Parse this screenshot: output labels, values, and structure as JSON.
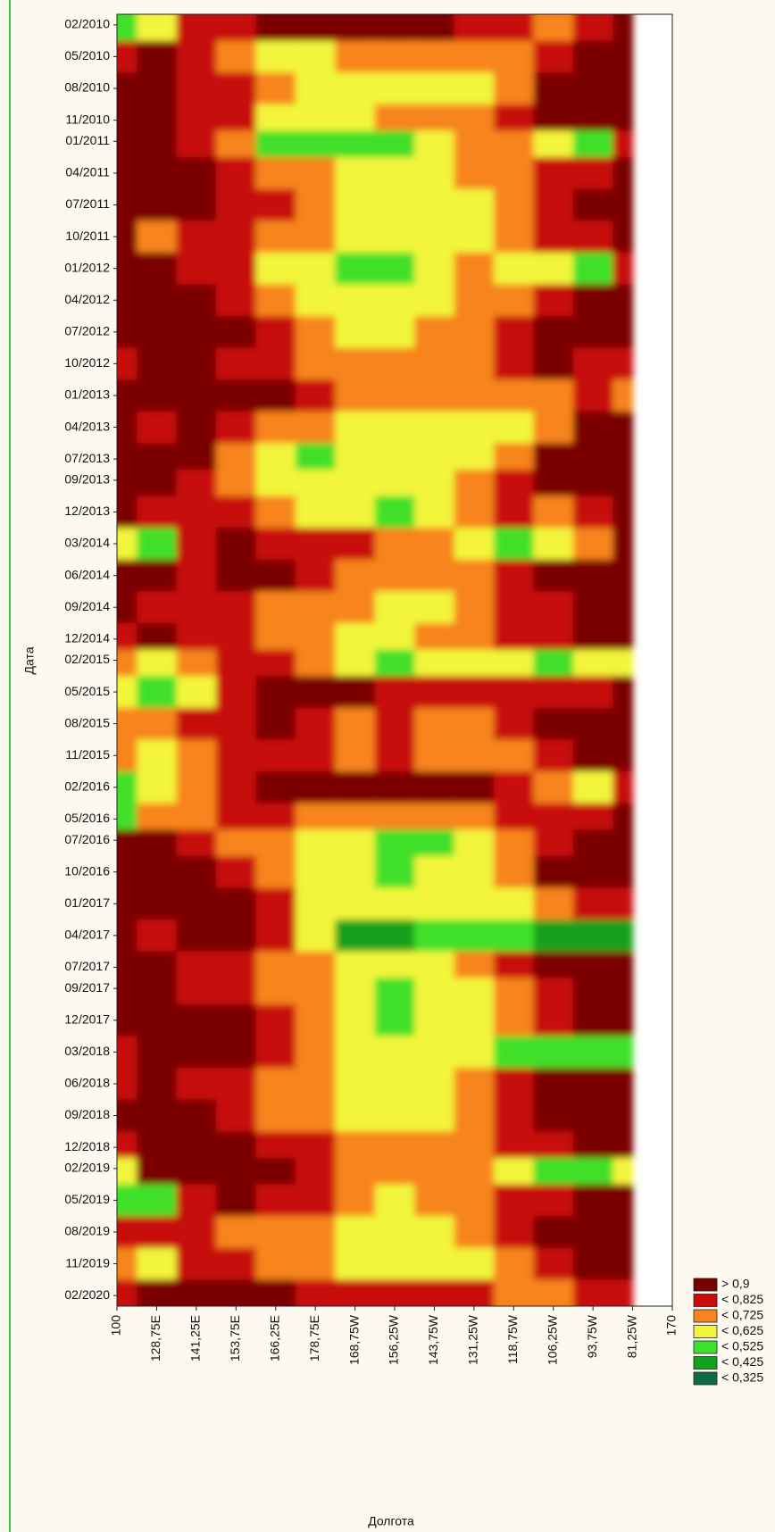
{
  "chart_data": {
    "type": "contour",
    "xlabel": "Долгота",
    "ylabel": "Дата",
    "xticks": [
      100,
      "128,75E",
      "141,25E",
      "153,75E",
      "166,25E",
      "178,75E",
      "168,75W",
      "156,25W",
      "143,75W",
      "131,25W",
      "118,75W",
      "106,25W",
      "93,75W",
      "81,25W",
      170
    ],
    "ylim": [
      "2010-01",
      "2020-03"
    ],
    "yticks": [
      {
        "value": "2010-02",
        "label": "02/2010"
      },
      {
        "value": "2010-05",
        "label": "05/2010"
      },
      {
        "value": "2010-08",
        "label": "08/2010"
      },
      {
        "value": "2010-11",
        "label": "11/2010"
      },
      {
        "value": "2011-01",
        "label": "01/2011"
      },
      {
        "value": "2011-04",
        "label": "04/2011"
      },
      {
        "value": "2011-07",
        "label": "07/2011"
      },
      {
        "value": "2011-10",
        "label": "10/2011"
      },
      {
        "value": "2012-01",
        "label": "01/2012"
      },
      {
        "value": "2012-04",
        "label": "04/2012"
      },
      {
        "value": "2012-07",
        "label": "07/2012"
      },
      {
        "value": "2012-10",
        "label": "10/2012"
      },
      {
        "value": "2013-01",
        "label": "01/2013"
      },
      {
        "value": "2013-04",
        "label": "04/2013"
      },
      {
        "value": "2013-07",
        "label": "07/2013"
      },
      {
        "value": "2013-09",
        "label": "09/2013"
      },
      {
        "value": "2013-12",
        "label": "12/2013"
      },
      {
        "value": "2014-03",
        "label": "03/2014"
      },
      {
        "value": "2014-06",
        "label": "06/2014"
      },
      {
        "value": "2014-09",
        "label": "09/2014"
      },
      {
        "value": "2014-12",
        "label": "12/2014"
      },
      {
        "value": "2015-02",
        "label": "02/2015"
      },
      {
        "value": "2015-05",
        "label": "05/2015"
      },
      {
        "value": "2015-08",
        "label": "08/2015"
      },
      {
        "value": "2015-11",
        "label": "11/2015"
      },
      {
        "value": "2016-02",
        "label": "02/2016"
      },
      {
        "value": "2016-05",
        "label": "05/2016"
      },
      {
        "value": "2016-07",
        "label": "07/2016"
      },
      {
        "value": "2016-10",
        "label": "10/2016"
      },
      {
        "value": "2017-01",
        "label": "01/2017"
      },
      {
        "value": "2017-04",
        "label": "04/2017"
      },
      {
        "value": "2017-07",
        "label": "07/2017"
      },
      {
        "value": "2017-09",
        "label": "09/2017"
      },
      {
        "value": "2017-12",
        "label": "12/2017"
      },
      {
        "value": "2018-03",
        "label": "03/2018"
      },
      {
        "value": "2018-06",
        "label": "06/2018"
      },
      {
        "value": "2018-09",
        "label": "09/2018"
      },
      {
        "value": "2018-12",
        "label": "12/2018"
      },
      {
        "value": "2019-02",
        "label": "02/2019"
      },
      {
        "value": "2019-05",
        "label": "05/2019"
      },
      {
        "value": "2019-08",
        "label": "08/2019"
      },
      {
        "value": "2019-11",
        "label": "11/2019"
      },
      {
        "value": "2020-02",
        "label": "02/2020"
      }
    ],
    "levels": [
      {
        "value": 0.9,
        "label": "> 0,9",
        "color": "#7a0000"
      },
      {
        "value": 0.825,
        "label": "< 0,825",
        "color": "#c80c0c"
      },
      {
        "value": 0.725,
        "label": "< 0,725",
        "color": "#f7841e"
      },
      {
        "value": 0.625,
        "label": "< 0,625",
        "color": "#f2f53a"
      },
      {
        "value": 0.525,
        "label": "< 0,525",
        "color": "#3fe02c"
      },
      {
        "value": 0.425,
        "label": "< 0,425",
        "color": "#15a01d"
      },
      {
        "value": 0.325,
        "label": "< 0,325",
        "color": "#0d6a44"
      }
    ],
    "z": [
      [
        0.5,
        0.6,
        0.8,
        0.8,
        0.95,
        0.95,
        0.95,
        0.95,
        0.95,
        0.8,
        0.8,
        0.7,
        0.8,
        0.95
      ],
      [
        0.8,
        0.95,
        0.8,
        0.7,
        0.6,
        0.6,
        0.7,
        0.7,
        0.7,
        0.7,
        0.7,
        0.8,
        0.95,
        0.95
      ],
      [
        0.95,
        0.95,
        0.8,
        0.8,
        0.7,
        0.6,
        0.6,
        0.6,
        0.6,
        0.6,
        0.7,
        0.95,
        0.95,
        0.95
      ],
      [
        0.95,
        0.95,
        0.8,
        0.8,
        0.6,
        0.6,
        0.6,
        0.7,
        0.7,
        0.7,
        0.8,
        0.95,
        0.95,
        0.95
      ],
      [
        0.95,
        0.95,
        0.8,
        0.7,
        0.5,
        0.5,
        0.5,
        0.5,
        0.6,
        0.7,
        0.7,
        0.6,
        0.5,
        0.8
      ],
      [
        0.95,
        0.95,
        0.95,
        0.8,
        0.7,
        0.7,
        0.6,
        0.6,
        0.6,
        0.7,
        0.7,
        0.8,
        0.8,
        0.95
      ],
      [
        0.95,
        0.95,
        0.95,
        0.8,
        0.8,
        0.7,
        0.6,
        0.6,
        0.6,
        0.6,
        0.7,
        0.8,
        0.95,
        0.95
      ],
      [
        0.95,
        0.7,
        0.8,
        0.8,
        0.7,
        0.7,
        0.6,
        0.6,
        0.6,
        0.6,
        0.7,
        0.8,
        0.8,
        0.95
      ],
      [
        0.95,
        0.95,
        0.8,
        0.8,
        0.6,
        0.6,
        0.5,
        0.5,
        0.6,
        0.7,
        0.6,
        0.6,
        0.5,
        0.8
      ],
      [
        0.95,
        0.95,
        0.95,
        0.8,
        0.7,
        0.6,
        0.6,
        0.6,
        0.6,
        0.7,
        0.7,
        0.8,
        0.95,
        0.95
      ],
      [
        0.95,
        0.95,
        0.95,
        0.95,
        0.8,
        0.7,
        0.6,
        0.6,
        0.7,
        0.7,
        0.8,
        0.95,
        0.95,
        0.95
      ],
      [
        0.8,
        0.95,
        0.95,
        0.8,
        0.8,
        0.7,
        0.7,
        0.7,
        0.7,
        0.7,
        0.8,
        0.95,
        0.8,
        0.8
      ],
      [
        0.95,
        0.95,
        0.95,
        0.95,
        0.95,
        0.8,
        0.7,
        0.7,
        0.7,
        0.7,
        0.7,
        0.7,
        0.8,
        0.7
      ],
      [
        0.95,
        0.8,
        0.95,
        0.8,
        0.7,
        0.7,
        0.6,
        0.6,
        0.6,
        0.6,
        0.6,
        0.7,
        0.95,
        0.95
      ],
      [
        0.95,
        0.95,
        0.95,
        0.7,
        0.6,
        0.5,
        0.6,
        0.6,
        0.6,
        0.6,
        0.7,
        0.95,
        0.95,
        0.95
      ],
      [
        0.95,
        0.95,
        0.8,
        0.7,
        0.6,
        0.6,
        0.6,
        0.6,
        0.6,
        0.7,
        0.8,
        0.95,
        0.95,
        0.95
      ],
      [
        0.95,
        0.8,
        0.8,
        0.8,
        0.7,
        0.6,
        0.6,
        0.5,
        0.6,
        0.7,
        0.8,
        0.7,
        0.8,
        0.95
      ],
      [
        0.6,
        0.5,
        0.8,
        0.95,
        0.8,
        0.8,
        0.8,
        0.7,
        0.7,
        0.6,
        0.5,
        0.6,
        0.7,
        0.95
      ],
      [
        0.95,
        0.95,
        0.8,
        0.95,
        0.95,
        0.8,
        0.7,
        0.7,
        0.7,
        0.7,
        0.8,
        0.95,
        0.95,
        0.95
      ],
      [
        0.95,
        0.8,
        0.8,
        0.8,
        0.7,
        0.7,
        0.7,
        0.6,
        0.6,
        0.7,
        0.8,
        0.8,
        0.95,
        0.95
      ],
      [
        0.8,
        0.95,
        0.8,
        0.8,
        0.7,
        0.7,
        0.6,
        0.6,
        0.7,
        0.7,
        0.8,
        0.8,
        0.95,
        0.95
      ],
      [
        0.7,
        0.6,
        0.7,
        0.8,
        0.8,
        0.7,
        0.6,
        0.5,
        0.6,
        0.6,
        0.6,
        0.5,
        0.6,
        0.6
      ],
      [
        0.6,
        0.5,
        0.6,
        0.8,
        0.95,
        0.95,
        0.95,
        0.8,
        0.8,
        0.8,
        0.8,
        0.8,
        0.8,
        0.95
      ],
      [
        0.7,
        0.7,
        0.8,
        0.8,
        0.95,
        0.8,
        0.7,
        0.8,
        0.7,
        0.7,
        0.8,
        0.95,
        0.95,
        0.95
      ],
      [
        0.7,
        0.6,
        0.7,
        0.8,
        0.8,
        0.8,
        0.7,
        0.8,
        0.7,
        0.7,
        0.7,
        0.8,
        0.95,
        0.95
      ],
      [
        0.5,
        0.6,
        0.7,
        0.8,
        0.95,
        0.95,
        0.95,
        0.95,
        0.95,
        0.95,
        0.8,
        0.7,
        0.6,
        0.8
      ],
      [
        0.5,
        0.7,
        0.7,
        0.8,
        0.8,
        0.7,
        0.7,
        0.7,
        0.7,
        0.7,
        0.8,
        0.8,
        0.8,
        0.95
      ],
      [
        0.95,
        0.95,
        0.8,
        0.7,
        0.7,
        0.6,
        0.6,
        0.5,
        0.5,
        0.6,
        0.7,
        0.8,
        0.95,
        0.95
      ],
      [
        0.95,
        0.95,
        0.95,
        0.8,
        0.7,
        0.6,
        0.6,
        0.5,
        0.6,
        0.6,
        0.7,
        0.95,
        0.95,
        0.95
      ],
      [
        0.95,
        0.95,
        0.95,
        0.95,
        0.8,
        0.6,
        0.6,
        0.6,
        0.6,
        0.6,
        0.6,
        0.7,
        0.8,
        0.8
      ],
      [
        0.95,
        0.8,
        0.95,
        0.95,
        0.8,
        0.6,
        0.4,
        0.4,
        0.5,
        0.5,
        0.5,
        0.4,
        0.4,
        0.4
      ],
      [
        0.95,
        0.95,
        0.8,
        0.8,
        0.7,
        0.7,
        0.6,
        0.6,
        0.6,
        0.7,
        0.8,
        0.95,
        0.95,
        0.95
      ],
      [
        0.95,
        0.95,
        0.8,
        0.8,
        0.7,
        0.7,
        0.6,
        0.5,
        0.6,
        0.6,
        0.7,
        0.8,
        0.95,
        0.95
      ],
      [
        0.95,
        0.95,
        0.95,
        0.95,
        0.8,
        0.7,
        0.6,
        0.5,
        0.6,
        0.6,
        0.7,
        0.8,
        0.95,
        0.95
      ],
      [
        0.8,
        0.95,
        0.95,
        0.95,
        0.8,
        0.7,
        0.6,
        0.6,
        0.6,
        0.6,
        0.5,
        0.5,
        0.5,
        0.5
      ],
      [
        0.8,
        0.95,
        0.8,
        0.8,
        0.7,
        0.7,
        0.6,
        0.6,
        0.6,
        0.7,
        0.8,
        0.95,
        0.95,
        0.95
      ],
      [
        0.95,
        0.95,
        0.95,
        0.8,
        0.7,
        0.7,
        0.6,
        0.6,
        0.6,
        0.7,
        0.8,
        0.95,
        0.95,
        0.95
      ],
      [
        0.8,
        0.95,
        0.95,
        0.95,
        0.8,
        0.8,
        0.7,
        0.7,
        0.7,
        0.7,
        0.8,
        0.8,
        0.95,
        0.95
      ],
      [
        0.6,
        0.95,
        0.95,
        0.95,
        0.95,
        0.8,
        0.7,
        0.7,
        0.7,
        0.7,
        0.6,
        0.5,
        0.5,
        0.6
      ],
      [
        0.5,
        0.5,
        0.8,
        0.95,
        0.8,
        0.8,
        0.7,
        0.6,
        0.7,
        0.7,
        0.8,
        0.8,
        0.95,
        0.95
      ],
      [
        0.8,
        0.8,
        0.8,
        0.7,
        0.7,
        0.7,
        0.6,
        0.6,
        0.6,
        0.7,
        0.8,
        0.95,
        0.95,
        0.95
      ],
      [
        0.7,
        0.6,
        0.8,
        0.8,
        0.7,
        0.7,
        0.6,
        0.6,
        0.6,
        0.6,
        0.7,
        0.8,
        0.95,
        0.95
      ],
      [
        0.8,
        0.95,
        0.95,
        0.95,
        0.95,
        0.8,
        0.8,
        0.8,
        0.8,
        0.8,
        0.7,
        0.7,
        0.8,
        0.8
      ]
    ]
  }
}
